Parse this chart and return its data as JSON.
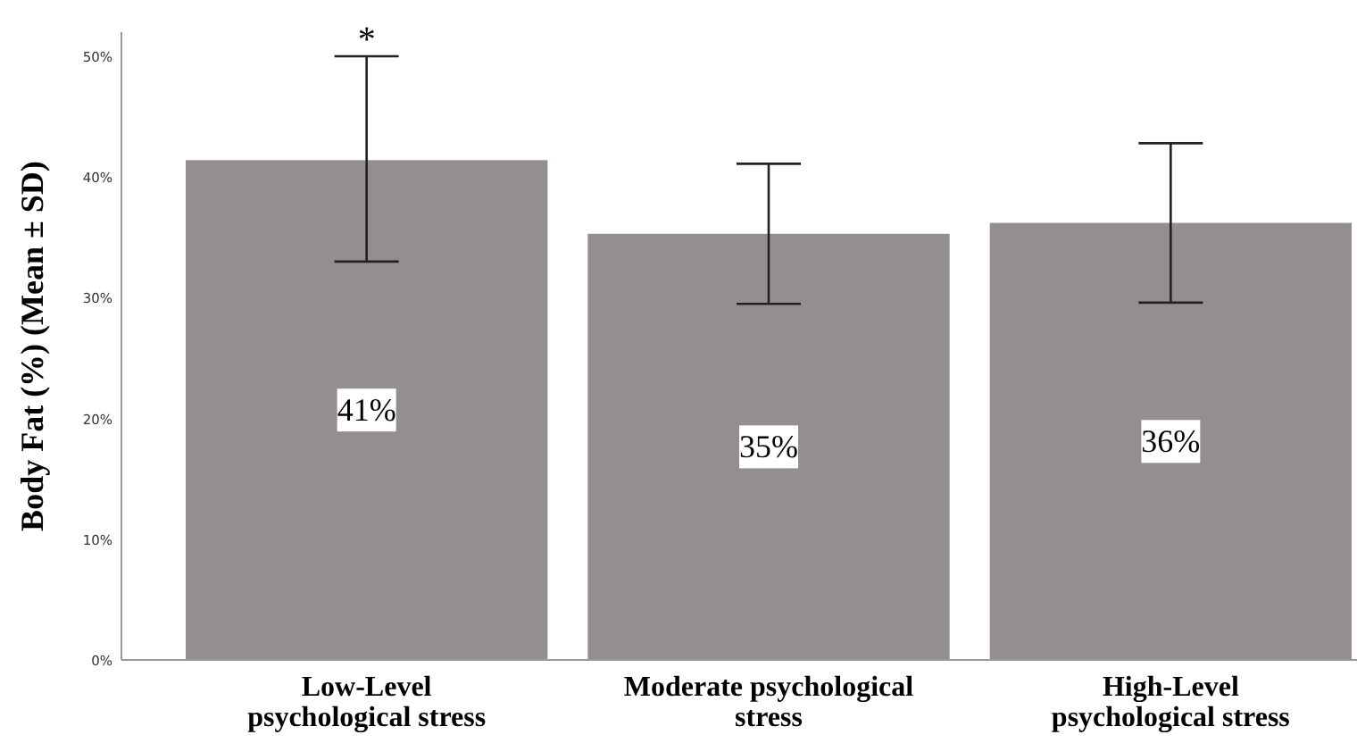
{
  "chart_data": {
    "type": "bar",
    "ylabel": "Body Fat (%) (Mean ± SD)",
    "categories": [
      "Low-Level psychological stress",
      "Moderate psychological stress",
      "High-Level psychological stress"
    ],
    "values": [
      41.4,
      35.3,
      36.2
    ],
    "color": "#938f8e",
    "errors": [
      [
        33.0,
        50.0
      ],
      [
        29.5,
        41.1
      ],
      [
        29.6,
        42.8
      ]
    ],
    "value_labels": [
      "41%",
      "35%",
      "36%"
    ],
    "ylim": [
      0,
      52
    ],
    "yticks": [
      {
        "value": 0,
        "label": "0%"
      },
      {
        "value": 10,
        "label": "10%"
      },
      {
        "value": 20,
        "label": "20%"
      },
      {
        "value": 30,
        "label": "30%"
      },
      {
        "value": 40,
        "label": "40%"
      },
      {
        "value": 50,
        "label": "50%"
      }
    ],
    "annotations": [
      {
        "text": "*",
        "x": "Low-Level psychological stress",
        "y": 50
      }
    ],
    "grid": false
  }
}
